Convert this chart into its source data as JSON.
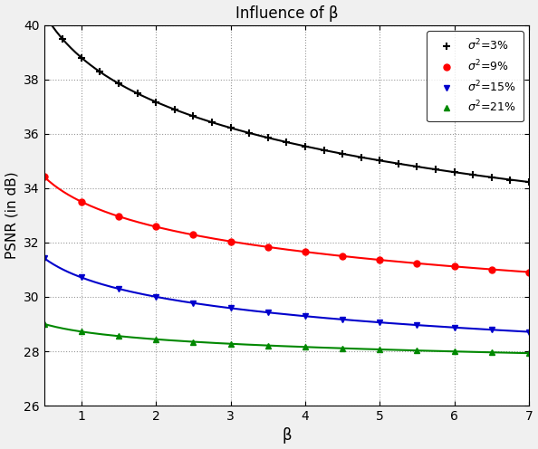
{
  "title": "Influence of β",
  "xlabel": "β",
  "ylabel": "PSNR (in dB)",
  "xlim": [
    0.5,
    7.0
  ],
  "ylim": [
    26,
    40
  ],
  "yticks": [
    26,
    28,
    30,
    32,
    34,
    36,
    38,
    40
  ],
  "xticks": [
    1,
    2,
    3,
    4,
    5,
    6,
    7
  ],
  "beta": [
    0.5,
    0.75,
    1.0,
    1.25,
    1.5,
    1.75,
    2.0,
    2.25,
    2.5,
    2.75,
    3.0,
    3.25,
    3.5,
    3.75,
    4.0,
    4.25,
    4.5,
    4.75,
    5.0,
    5.25,
    5.5,
    5.75,
    6.0,
    6.25,
    6.5,
    6.75,
    7.0
  ],
  "sigma3": [
    39.98,
    39.37,
    38.87,
    38.45,
    38.05,
    37.7,
    37.38,
    37.1,
    36.82,
    36.55,
    36.3,
    36.08,
    35.88,
    35.68,
    35.5,
    35.33,
    35.17,
    35.03,
    34.88,
    34.75,
    34.63,
    34.52,
    34.41,
    34.32,
    34.22,
    34.13,
    35.05
  ],
  "sigma9": [
    34.15,
    33.88,
    33.6,
    33.35,
    33.1,
    32.88,
    32.68,
    32.5,
    32.32,
    32.18,
    32.05,
    31.92,
    31.8,
    31.7,
    31.6,
    31.5,
    31.42,
    31.34,
    31.27,
    31.21,
    31.16,
    31.11,
    31.06,
    31.01,
    30.97,
    30.93,
    31.4
  ],
  "sigma15": [
    31.05,
    31.05,
    30.95,
    30.7,
    30.5,
    30.3,
    30.1,
    29.95,
    29.8,
    29.65,
    29.55,
    29.45,
    29.35,
    29.25,
    29.18,
    29.1,
    29.02,
    28.95,
    28.88,
    28.85,
    28.82,
    28.8,
    28.78,
    28.82,
    28.88,
    28.95,
    29.35
  ],
  "sigma21": [
    28.68,
    28.82,
    28.82,
    28.7,
    28.68,
    28.62,
    28.58,
    28.52,
    28.45,
    28.38,
    28.32,
    28.25,
    28.18,
    28.12,
    28.08,
    28.05,
    28.02,
    28.0,
    27.98,
    27.97,
    27.97,
    27.96,
    27.96,
    27.98,
    28.0,
    28.02,
    27.98
  ],
  "color_black": "#000000",
  "color_red": "#ff0000",
  "color_blue": "#0000cc",
  "color_green": "#008800",
  "bg_color": "#ffffff",
  "fig_bg": "#f0f0f0"
}
